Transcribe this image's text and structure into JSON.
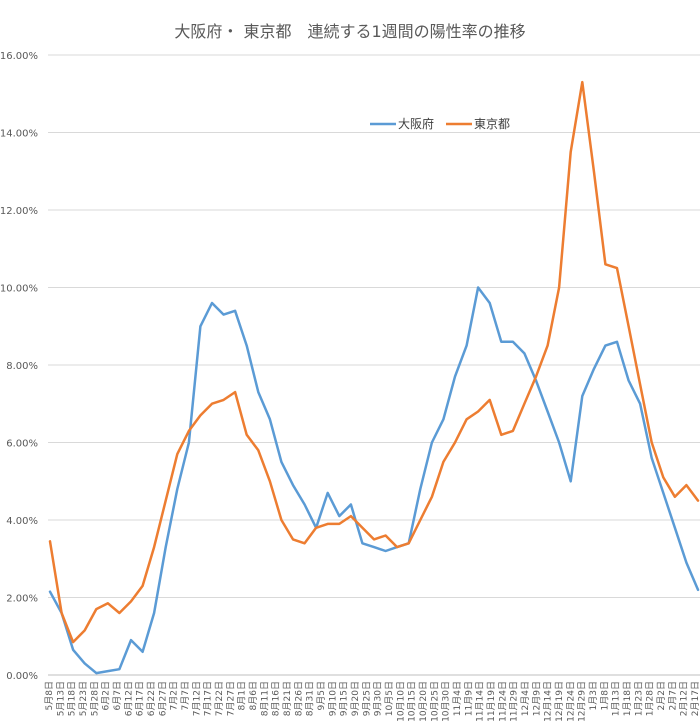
{
  "chart_data": {
    "type": "line",
    "title": "大阪府・ 東京都　連続する1週間の陽性率の推移",
    "xlabel": "",
    "ylabel": "",
    "ylim": [
      0,
      0.16
    ],
    "y_ticks": [
      "0.00%",
      "2.00%",
      "4.00%",
      "6.00%",
      "8.00%",
      "10.00%",
      "12.00%",
      "14.00%",
      "16.00%"
    ],
    "grid": true,
    "legend_position": "top-center",
    "x_tick_labels": [
      "5月8日",
      "5月13日",
      "5月18日",
      "5月23日",
      "5月28日",
      "6月2日",
      "6月7日",
      "6月12日",
      "6月17日",
      "6月22日",
      "6月27日",
      "7月2日",
      "7月7日",
      "7月12日",
      "7月17日",
      "7月22日",
      "7月27日",
      "8月1日",
      "8月6日",
      "8月11日",
      "8月16日",
      "8月21日",
      "8月26日",
      "8月31日",
      "9月5日",
      "9月10日",
      "9月15日",
      "9月20日",
      "9月25日",
      "9月30日",
      "10月5日",
      "10月10日",
      "10月15日",
      "10月20日",
      "10月25日",
      "10月30日",
      "11月4日",
      "11月9日",
      "11月14日",
      "11月19日",
      "11月24日",
      "11月29日",
      "12月4日",
      "12月9日",
      "12月14日",
      "12月19日",
      "12月24日",
      "12月29日",
      "1月3日",
      "1月8日",
      "1月13日",
      "1月18日",
      "1月23日",
      "1月28日",
      "2月2日",
      "2月7日",
      "2月12日",
      "2月17日"
    ],
    "series": [
      {
        "name": "大阪府",
        "color": "#5B9BD5",
        "values": [
          0.0215,
          0.016,
          0.0065,
          0.003,
          0.0005,
          0.001,
          0.0015,
          0.009,
          0.006,
          0.016,
          0.033,
          0.048,
          0.06,
          0.09,
          0.096,
          0.093,
          0.094,
          0.085,
          0.073,
          0.066,
          0.055,
          0.049,
          0.044,
          0.038,
          0.047,
          0.041,
          0.044,
          0.034,
          0.033,
          0.032,
          0.033,
          0.034,
          0.048,
          0.06,
          0.066,
          0.077,
          0.085,
          0.1,
          0.096,
          0.086,
          0.086,
          0.083,
          0.076,
          0.068,
          0.06,
          0.05,
          0.072,
          0.079,
          0.085,
          0.086,
          0.076,
          0.07,
          0.056,
          0.047,
          0.038,
          0.029,
          0.022
        ]
      },
      {
        "name": "東京都",
        "color": "#ED7D31",
        "values": [
          0.0345,
          0.016,
          0.0085,
          0.0115,
          0.017,
          0.0185,
          0.016,
          0.019,
          0.023,
          0.033,
          0.045,
          0.057,
          0.063,
          0.067,
          0.07,
          0.071,
          0.073,
          0.062,
          0.058,
          0.05,
          0.04,
          0.035,
          0.034,
          0.038,
          0.039,
          0.039,
          0.041,
          0.038,
          0.035,
          0.036,
          0.033,
          0.034,
          0.04,
          0.046,
          0.055,
          0.06,
          0.066,
          0.068,
          0.071,
          0.062,
          0.063,
          0.07,
          0.077,
          0.085,
          0.1,
          0.135,
          0.153,
          0.13,
          0.106,
          0.105,
          0.09,
          0.075,
          0.06,
          0.051,
          0.046,
          0.049,
          0.045
        ]
      }
    ]
  }
}
